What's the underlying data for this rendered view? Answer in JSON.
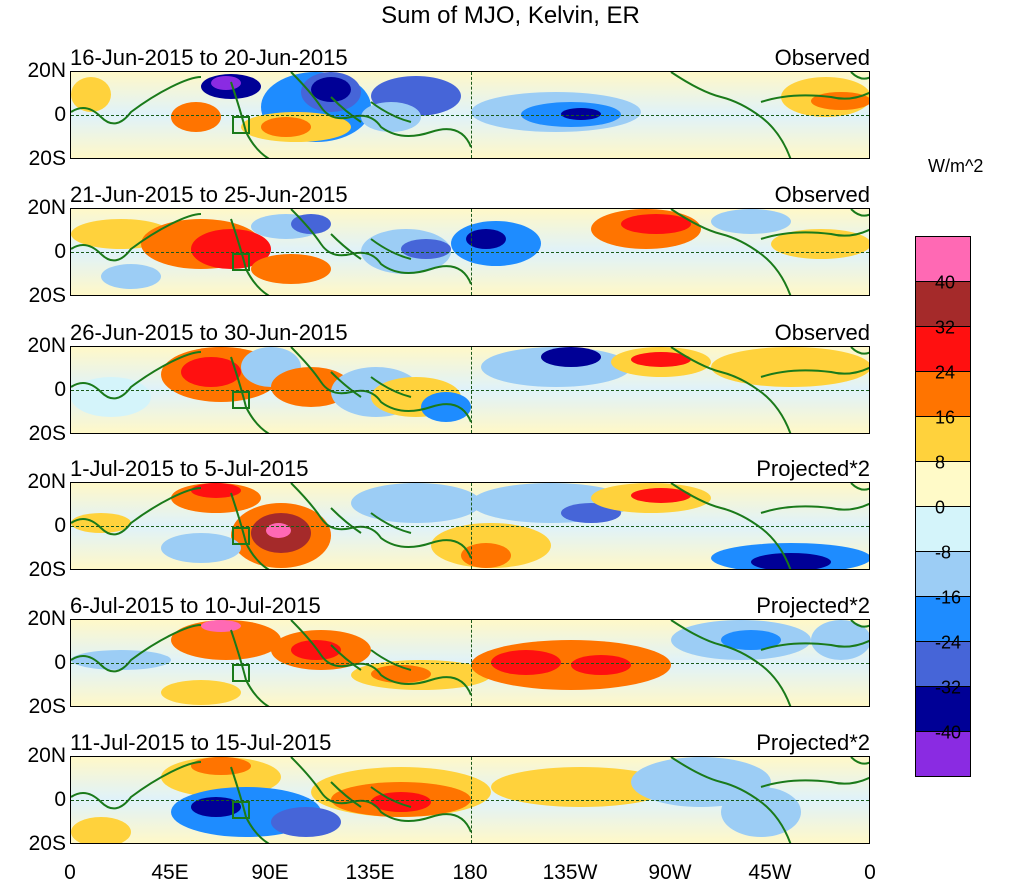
{
  "title": "Sum of MJO, Kelvin, ER",
  "units": "W/m^2",
  "panels": [
    {
      "date_range": "16-Jun-2015 to 20-Jun-2015",
      "kind": "Observed"
    },
    {
      "date_range": "21-Jun-2015 to 25-Jun-2015",
      "kind": "Observed"
    },
    {
      "date_range": "26-Jun-2015 to 30-Jun-2015",
      "kind": "Observed"
    },
    {
      "date_range": "1-Jul-2015 to 5-Jul-2015",
      "kind": "Projected*2"
    },
    {
      "date_range": "6-Jul-2015 to 10-Jul-2015",
      "kind": "Projected*2"
    },
    {
      "date_range": "11-Jul-2015 to 15-Jul-2015",
      "kind": "Projected*2"
    }
  ],
  "lat_labels": [
    "20N",
    "0",
    "20S"
  ],
  "lon_labels": [
    "0",
    "45E",
    "90E",
    "135E",
    "180",
    "135W",
    "90W",
    "45W",
    "0"
  ],
  "legend": {
    "labels": [
      "40",
      "32",
      "24",
      "16",
      "8",
      "0",
      "-8",
      "-16",
      "-24",
      "-32",
      "-40"
    ],
    "colors": [
      "#ff69b4",
      "#a52a2a",
      "#ff1010",
      "#ff7400",
      "#ffd23c",
      "#fffac8",
      "#d4f4fa",
      "#9ccdf5",
      "#1e8cff",
      "#4665d8",
      "#000096",
      "#8a2be2"
    ]
  }
}
